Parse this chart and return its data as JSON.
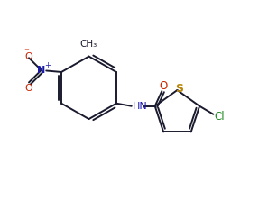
{
  "background_color": "#ffffff",
  "bond_color": "#1a1a2e",
  "n_color": "#1a1aaa",
  "s_color": "#b8860b",
  "o_color": "#cc2200",
  "cl_color": "#228B22",
  "line_width": 1.4,
  "figsize": [
    3.07,
    2.43
  ],
  "dpi": 100,
  "xlim": [
    0,
    10
  ],
  "ylim": [
    0,
    8
  ]
}
